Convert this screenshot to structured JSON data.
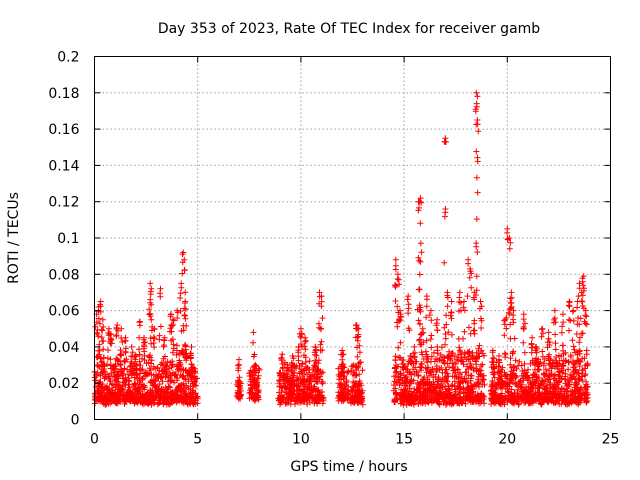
{
  "chart_data": {
    "type": "scatter",
    "title": "Day 353 of 2023, Rate Of TEC Index for receiver gamb",
    "xlabel": "GPS time / hours",
    "ylabel": "ROTI / TECUs",
    "xlim": [
      0,
      25
    ],
    "ylim": [
      0,
      0.2
    ],
    "x_ticks": [
      "0",
      "5",
      "10",
      "15",
      "20",
      "25"
    ],
    "y_ticks": [
      "0",
      "0.02",
      "0.04",
      "0.06",
      "0.08",
      "0.1",
      "0.12",
      "0.14",
      "0.16",
      "0.18",
      "0.2"
    ],
    "grid": true,
    "marker": "+",
    "series_color": "#ff0000",
    "clusters": [
      {
        "x_range": [
          0.0,
          0.5
        ],
        "y_base": [
          0.008,
          0.032
        ],
        "peaks": [
          [
            0.1,
            0.058
          ],
          [
            0.2,
            0.062
          ],
          [
            0.3,
            0.065
          ],
          [
            0.4,
            0.055
          ]
        ]
      },
      {
        "x_range": [
          0.5,
          1.0
        ],
        "y_base": [
          0.008,
          0.03
        ],
        "peaks": [
          [
            0.7,
            0.05
          ],
          [
            0.8,
            0.047
          ]
        ]
      },
      {
        "x_range": [
          1.0,
          1.6
        ],
        "y_base": [
          0.008,
          0.032
        ],
        "peaks": [
          [
            1.1,
            0.052
          ],
          [
            1.3,
            0.05
          ],
          [
            1.5,
            0.045
          ]
        ]
      },
      {
        "x_range": [
          1.6,
          2.1
        ],
        "y_base": [
          0.008,
          0.028
        ],
        "peaks": [
          [
            1.8,
            0.04
          ],
          [
            2.0,
            0.035
          ]
        ]
      },
      {
        "x_range": [
          2.1,
          3.0
        ],
        "y_base": [
          0.008,
          0.034
        ],
        "peaks": [
          [
            2.2,
            0.054
          ],
          [
            2.4,
            0.045
          ],
          [
            2.7,
            0.075
          ],
          [
            2.75,
            0.072
          ],
          [
            2.9,
            0.05
          ]
        ]
      },
      {
        "x_range": [
          3.0,
          3.9
        ],
        "y_base": [
          0.008,
          0.03
        ],
        "peaks": [
          [
            3.2,
            0.072
          ],
          [
            3.4,
            0.045
          ],
          [
            3.7,
            0.058
          ],
          [
            3.8,
            0.055
          ]
        ]
      },
      {
        "x_range": [
          3.9,
          4.5
        ],
        "y_base": [
          0.008,
          0.035
        ],
        "peaks": [
          [
            4.0,
            0.06
          ],
          [
            4.2,
            0.075
          ],
          [
            4.3,
            0.092
          ],
          [
            4.35,
            0.088
          ],
          [
            4.4,
            0.065
          ]
        ]
      },
      {
        "x_range": [
          4.5,
          5.0
        ],
        "y_base": [
          0.008,
          0.028
        ],
        "peaks": [
          [
            4.7,
            0.04
          ]
        ]
      },
      {
        "x_range": [
          6.9,
          7.1
        ],
        "y_base": [
          0.01,
          0.02
        ],
        "peaks": [
          [
            7.0,
            0.033
          ]
        ]
      },
      {
        "x_range": [
          7.5,
          8.0
        ],
        "y_base": [
          0.01,
          0.025
        ],
        "peaks": [
          [
            7.7,
            0.048
          ],
          [
            7.8,
            0.03
          ]
        ]
      },
      {
        "x_range": [
          8.9,
          10.0
        ],
        "y_base": [
          0.008,
          0.028
        ],
        "peaks": [
          [
            9.1,
            0.036
          ],
          [
            9.6,
            0.035
          ],
          [
            9.9,
            0.04
          ]
        ]
      },
      {
        "x_range": [
          10.0,
          11.1
        ],
        "y_base": [
          0.008,
          0.03
        ],
        "peaks": [
          [
            10.0,
            0.05
          ],
          [
            10.2,
            0.045
          ],
          [
            10.7,
            0.04
          ],
          [
            10.9,
            0.07
          ],
          [
            11.0,
            0.068
          ]
        ]
      },
      {
        "x_range": [
          11.8,
          12.3
        ],
        "y_base": [
          0.01,
          0.027
        ],
        "peaks": [
          [
            12.0,
            0.038
          ]
        ]
      },
      {
        "x_range": [
          12.4,
          13.0
        ],
        "y_base": [
          0.008,
          0.03
        ],
        "peaks": [
          [
            12.7,
            0.052
          ],
          [
            12.8,
            0.05
          ]
        ]
      },
      {
        "x_range": [
          14.5,
          15.0
        ],
        "y_base": [
          0.008,
          0.033
        ],
        "peaks": [
          [
            14.6,
            0.088
          ],
          [
            14.7,
            0.08
          ],
          [
            14.8,
            0.06
          ]
        ]
      },
      {
        "x_range": [
          15.0,
          15.6
        ],
        "y_base": [
          0.008,
          0.03
        ],
        "peaks": [
          [
            15.2,
            0.068
          ],
          [
            15.3,
            0.035
          ],
          [
            15.5,
            0.04
          ]
        ]
      },
      {
        "x_range": [
          15.6,
          16.0
        ],
        "y_base": [
          0.008,
          0.032
        ],
        "peaks": [
          [
            15.7,
            0.12
          ],
          [
            15.75,
            0.12
          ],
          [
            15.8,
            0.122
          ],
          [
            15.75,
            0.063
          ],
          [
            15.9,
            0.05
          ]
        ]
      },
      {
        "x_range": [
          16.0,
          16.8
        ],
        "y_base": [
          0.008,
          0.035
        ],
        "peaks": [
          [
            16.1,
            0.068
          ],
          [
            16.3,
            0.06
          ],
          [
            16.6,
            0.055
          ]
        ]
      },
      {
        "x_range": [
          16.8,
          17.5
        ],
        "y_base": [
          0.008,
          0.036
        ],
        "peaks": [
          [
            17.0,
            0.155
          ],
          [
            17.0,
            0.116
          ],
          [
            17.1,
            0.07
          ],
          [
            17.3,
            0.065
          ]
        ]
      },
      {
        "x_range": [
          17.5,
          18.3
        ],
        "y_base": [
          0.008,
          0.036
        ],
        "peaks": [
          [
            17.7,
            0.07
          ],
          [
            17.9,
            0.065
          ],
          [
            18.1,
            0.088
          ],
          [
            18.2,
            0.083
          ]
        ]
      },
      {
        "x_range": [
          18.3,
          18.9
        ],
        "y_base": [
          0.008,
          0.035
        ],
        "peaks": [
          [
            18.4,
            0.07
          ],
          [
            18.5,
            0.18
          ],
          [
            18.55,
            0.178
          ],
          [
            18.55,
            0.165
          ],
          [
            18.7,
            0.065
          ]
        ]
      },
      {
        "x_range": [
          19.2,
          20.0
        ],
        "y_base": [
          0.008,
          0.028
        ],
        "peaks": [
          [
            19.3,
            0.038
          ],
          [
            19.6,
            0.035
          ],
          [
            19.9,
            0.055
          ]
        ]
      },
      {
        "x_range": [
          20.0,
          20.5
        ],
        "y_base": [
          0.008,
          0.03
        ],
        "peaks": [
          [
            20.0,
            0.105
          ],
          [
            20.1,
            0.1
          ],
          [
            20.2,
            0.07
          ],
          [
            20.3,
            0.06
          ]
        ]
      },
      {
        "x_range": [
          20.5,
          21.5
        ],
        "y_base": [
          0.008,
          0.03
        ],
        "peaks": [
          [
            20.8,
            0.058
          ],
          [
            21.2,
            0.045
          ],
          [
            21.4,
            0.04
          ]
        ]
      },
      {
        "x_range": [
          21.5,
          22.5
        ],
        "y_base": [
          0.008,
          0.032
        ],
        "peaks": [
          [
            21.7,
            0.05
          ],
          [
            22.0,
            0.048
          ],
          [
            22.3,
            0.06
          ]
        ]
      },
      {
        "x_range": [
          22.5,
          23.3
        ],
        "y_base": [
          0.008,
          0.035
        ],
        "peaks": [
          [
            22.7,
            0.058
          ],
          [
            23.0,
            0.065
          ],
          [
            23.2,
            0.06
          ]
        ]
      },
      {
        "x_range": [
          23.3,
          23.9
        ],
        "y_base": [
          0.008,
          0.036
        ],
        "peaks": [
          [
            23.4,
            0.065
          ],
          [
            23.5,
            0.075
          ],
          [
            23.6,
            0.07
          ],
          [
            23.7,
            0.079
          ],
          [
            23.8,
            0.06
          ]
        ]
      }
    ]
  }
}
